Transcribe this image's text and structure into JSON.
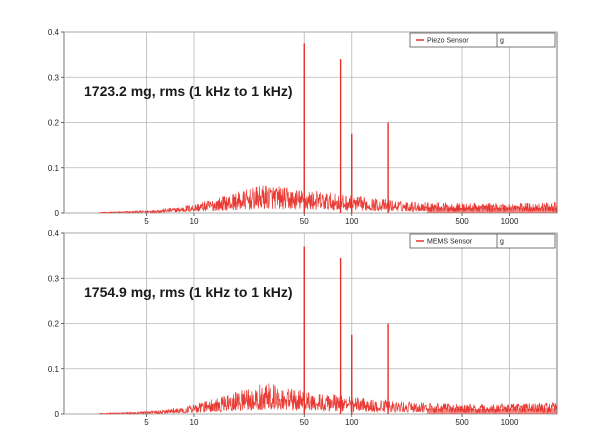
{
  "chart_data": [
    {
      "type": "line",
      "x_scale": "log",
      "xlim": [
        1.5,
        2000
      ],
      "ylim": [
        0,
        0.4
      ],
      "x_ticks": [
        5,
        10,
        50,
        100,
        500,
        1000
      ],
      "x_tick_labels": [
        "5",
        "10",
        "50",
        "100",
        "500",
        "1000"
      ],
      "y_ticks": [
        0,
        0.1,
        0.2,
        0.3,
        0.4
      ],
      "y_tick_labels": [
        "0",
        "0.1",
        "0.2",
        "0.3",
        "0.4"
      ],
      "grid": true,
      "legend_position": "top-right",
      "legend_label": "Piezo Sensor",
      "legend_unit": "g",
      "annotation": "1723.2 mg, rms (1 kHz to  1 kHz)",
      "series_color": "#e8302a",
      "peaks": [
        {
          "x": 50,
          "y": 0.375
        },
        {
          "x": 85,
          "y": 0.34
        },
        {
          "x": 100,
          "y": 0.175
        },
        {
          "x": 170,
          "y": 0.2
        }
      ],
      "noise_envelope": [
        {
          "x": 2,
          "y": 0.0
        },
        {
          "x": 5,
          "y": 0.005
        },
        {
          "x": 8,
          "y": 0.012
        },
        {
          "x": 12,
          "y": 0.025
        },
        {
          "x": 20,
          "y": 0.045
        },
        {
          "x": 30,
          "y": 0.06
        },
        {
          "x": 40,
          "y": 0.05
        },
        {
          "x": 60,
          "y": 0.045
        },
        {
          "x": 100,
          "y": 0.035
        },
        {
          "x": 200,
          "y": 0.025
        },
        {
          "x": 500,
          "y": 0.02
        },
        {
          "x": 1000,
          "y": 0.02
        },
        {
          "x": 2000,
          "y": 0.022
        }
      ]
    },
    {
      "type": "line",
      "x_scale": "log",
      "xlim": [
        1.5,
        2000
      ],
      "ylim": [
        0,
        0.4
      ],
      "x_ticks": [
        5,
        10,
        50,
        100,
        500,
        1000
      ],
      "x_tick_labels": [
        "5",
        "10",
        "50",
        "100",
        "500",
        "1000"
      ],
      "y_ticks": [
        0,
        0.1,
        0.2,
        0.3,
        0.4
      ],
      "y_tick_labels": [
        "0",
        "0.1",
        "0.2",
        "0.3",
        "0.4"
      ],
      "grid": true,
      "legend_position": "top-right",
      "legend_label": "MEMS Sensor",
      "legend_unit": "g",
      "annotation": "1754.9 mg, rms (1 kHz to  1 kHz)",
      "series_color": "#e8302a",
      "peaks": [
        {
          "x": 50,
          "y": 0.37
        },
        {
          "x": 85,
          "y": 0.345
        },
        {
          "x": 100,
          "y": 0.175
        },
        {
          "x": 170,
          "y": 0.2
        }
      ],
      "noise_envelope": [
        {
          "x": 2,
          "y": 0.0
        },
        {
          "x": 5,
          "y": 0.005
        },
        {
          "x": 8,
          "y": 0.012
        },
        {
          "x": 12,
          "y": 0.028
        },
        {
          "x": 20,
          "y": 0.048
        },
        {
          "x": 30,
          "y": 0.065
        },
        {
          "x": 40,
          "y": 0.052
        },
        {
          "x": 60,
          "y": 0.045
        },
        {
          "x": 100,
          "y": 0.035
        },
        {
          "x": 200,
          "y": 0.025
        },
        {
          "x": 500,
          "y": 0.02
        },
        {
          "x": 1000,
          "y": 0.02
        },
        {
          "x": 2000,
          "y": 0.024
        }
      ]
    }
  ]
}
